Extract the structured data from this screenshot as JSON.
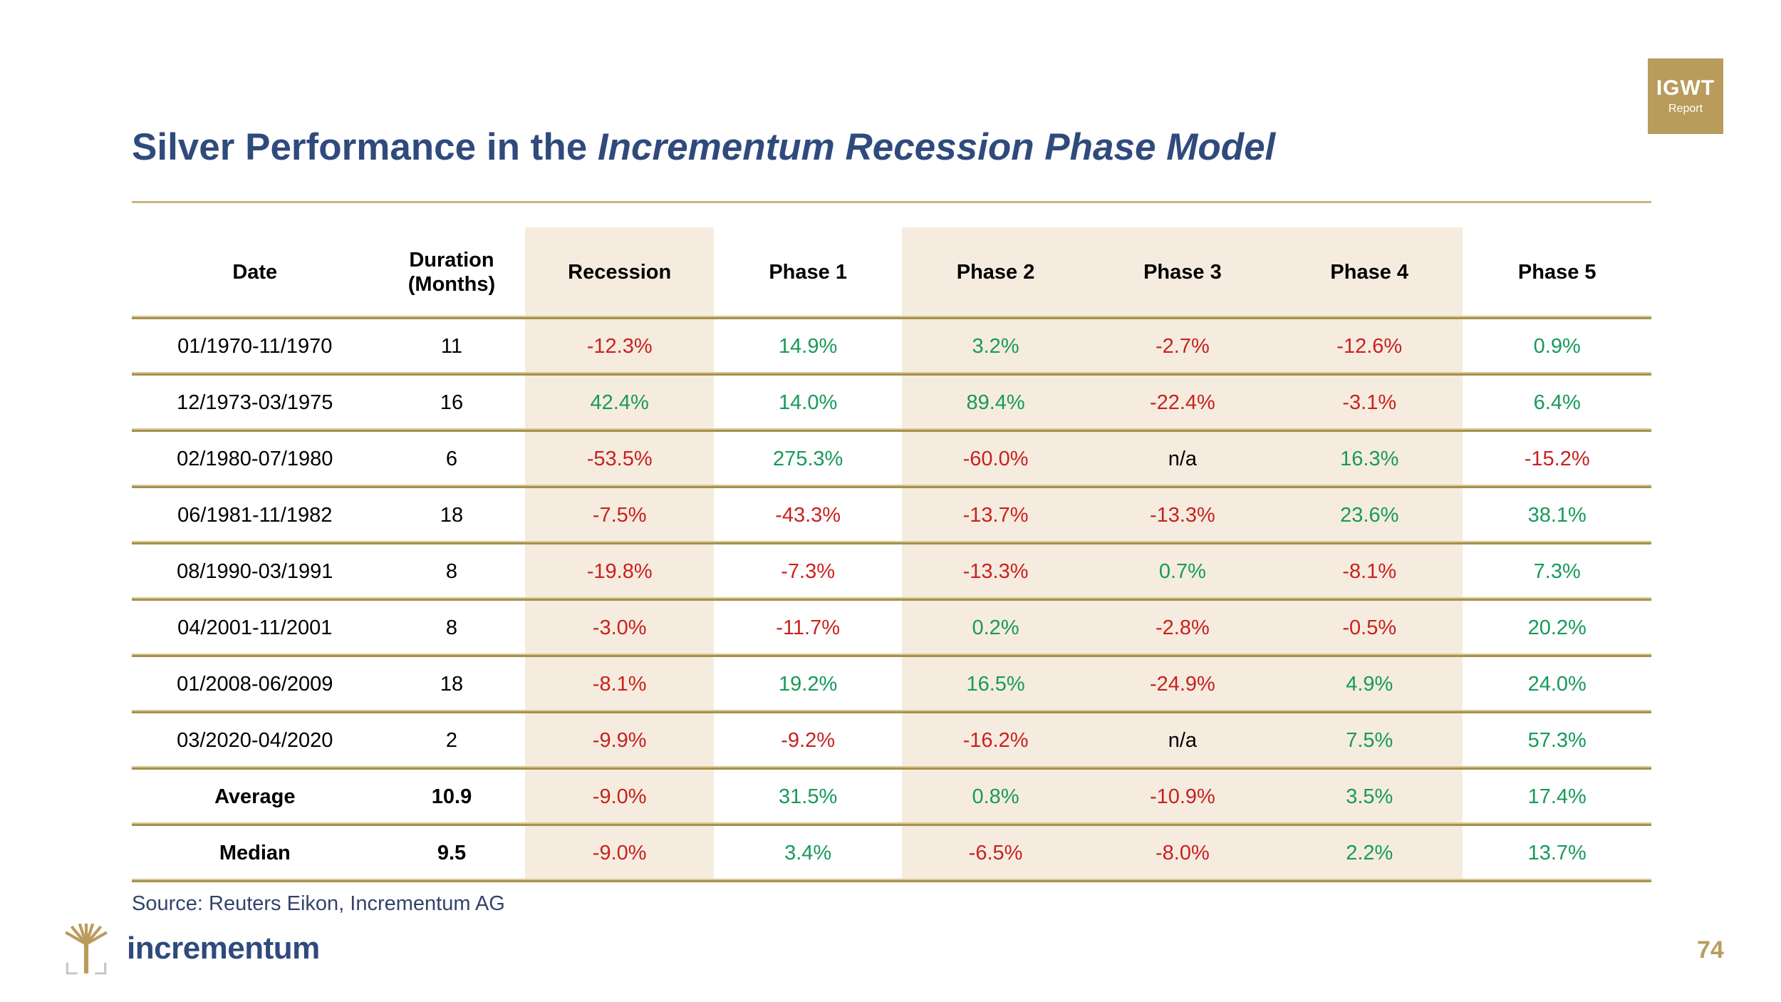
{
  "badge": {
    "line1": "IGWT",
    "line2": "Report"
  },
  "title": {
    "regular": "Silver Performance in the ",
    "italic": "Incrementum Recession Phase Model"
  },
  "chart_data": {
    "type": "table",
    "title": "Silver Performance in the Incrementum Recession Phase Model",
    "columns": [
      "Date",
      "Duration\n(Months)",
      "Recession",
      "Phase 1",
      "Phase 2",
      "Phase 3",
      "Phase 4",
      "Phase 5"
    ],
    "highlighted_columns": [
      "Recession",
      "Phase 2",
      "Phase 3",
      "Phase 4"
    ],
    "highlighted_column_indexes": [
      2,
      4,
      5,
      6
    ],
    "rows": [
      [
        "01/1970-11/1970",
        "11",
        "-12.3%",
        "14.9%",
        "3.2%",
        "-2.7%",
        "-12.6%",
        "0.9%"
      ],
      [
        "12/1973-03/1975",
        "16",
        "42.4%",
        "14.0%",
        "89.4%",
        "-22.4%",
        "-3.1%",
        "6.4%"
      ],
      [
        "02/1980-07/1980",
        "6",
        "-53.5%",
        "275.3%",
        "-60.0%",
        "n/a",
        "16.3%",
        "-15.2%"
      ],
      [
        "06/1981-11/1982",
        "18",
        "-7.5%",
        "-43.3%",
        "-13.7%",
        "-13.3%",
        "23.6%",
        "38.1%"
      ],
      [
        "08/1990-03/1991",
        "8",
        "-19.8%",
        "-7.3%",
        "-13.3%",
        "0.7%",
        "-8.1%",
        "7.3%"
      ],
      [
        "04/2001-11/2001",
        "8",
        "-3.0%",
        "-11.7%",
        "0.2%",
        "-2.8%",
        "-0.5%",
        "20.2%"
      ],
      [
        "01/2008-06/2009",
        "18",
        "-8.1%",
        "19.2%",
        "16.5%",
        "-24.9%",
        "4.9%",
        "24.0%"
      ],
      [
        "03/2020-04/2020",
        "2",
        "-9.9%",
        "-9.2%",
        "-16.2%",
        "n/a",
        "7.5%",
        "57.3%"
      ]
    ],
    "summary_rows": [
      [
        "Average",
        "10.9",
        "-9.0%",
        "31.5%",
        "0.8%",
        "-10.9%",
        "3.5%",
        "17.4%"
      ],
      [
        "Median",
        "9.5",
        "-9.0%",
        "3.4%",
        "-6.5%",
        "-8.0%",
        "2.2%",
        "13.7%"
      ]
    ],
    "legend_colors": {
      "negative_value": "#c9211f",
      "positive_value": "#179a5a",
      "not_available": "#000000",
      "highlight_background": "#f5ecdf"
    }
  },
  "source": "Source: Reuters Eikon, Incrementum AG",
  "logo": {
    "text": "incrementum"
  },
  "page_number": "74",
  "colors": {
    "title_navy": "#2f4a7c",
    "badge_gold": "#b99c5c",
    "table_line_gold": "#a5914e",
    "page_number_gold": "#b99c5c"
  }
}
